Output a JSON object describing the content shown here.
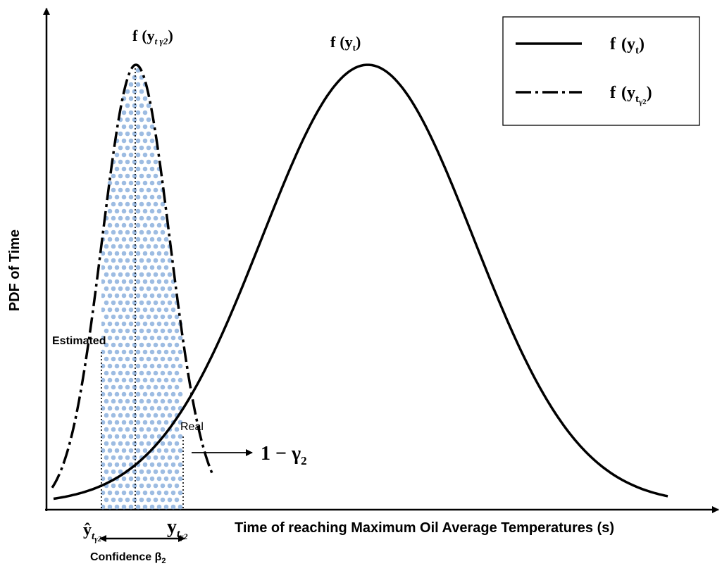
{
  "labels": {
    "y_axis": "PDF of Time",
    "x_axis": "Time of reaching Maximum Oil Average Temperatures (s)",
    "curve_narrow_title_f": "f",
    "curve_narrow_title_y": "(y",
    "curve_narrow_title_sub": "t γ2",
    "curve_narrow_title_close": ")",
    "curve_wide_title_f": "f",
    "curve_wide_title_y": "(y",
    "curve_wide_title_sub": "t",
    "curve_wide_title_close": ")",
    "estimated": "Estimated",
    "real": "Real",
    "one_minus_gamma": "1 − γ",
    "one_minus_gamma_sub": "2",
    "yhat_main": "ŷ",
    "yhat_sub": "t",
    "yhat_subsub": "γ2",
    "y_main": "y",
    "y_sub": "t",
    "y_subsub": "γ2",
    "confidence": "Confidence β",
    "confidence_sub": "2"
  },
  "legend": {
    "position": "top-right",
    "entries": [
      {
        "style": "solid",
        "f": "f",
        "arg": "(y",
        "sub": "t",
        "subsub": "",
        "close": ")"
      },
      {
        "style": "dash-dot",
        "f": "f",
        "arg": "(y",
        "sub": "t",
        "subsub": "γ2",
        "close": ")"
      }
    ]
  },
  "colors": {
    "curve": "#000000",
    "dots": "#9dbce2",
    "background": "#ffffff"
  }
}
